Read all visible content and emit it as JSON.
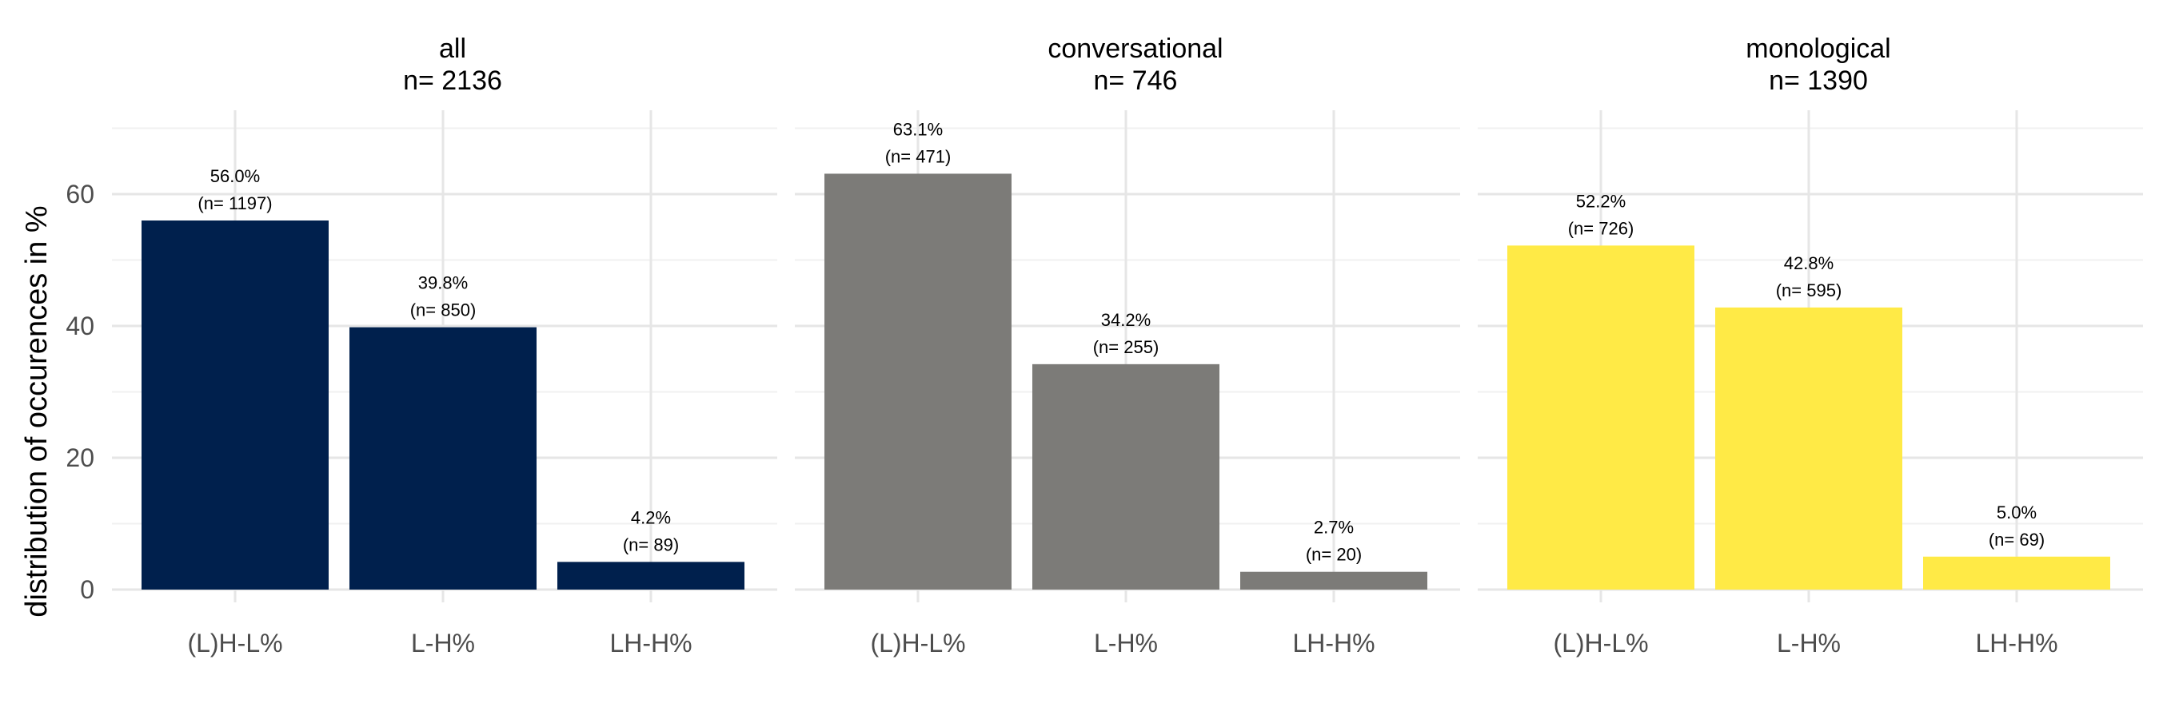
{
  "chart_data": {
    "type": "bar",
    "ylabel": "distribution of occurences in %",
    "ylim": [
      0,
      72
    ],
    "yticks": [
      0,
      20,
      40,
      60
    ],
    "grid": true,
    "categories": [
      "(L)H-L%",
      "L-H%",
      "LH-H%"
    ],
    "facets": [
      {
        "title": "all",
        "n_label": "n=  2136",
        "color": "#00204D",
        "values": [
          56.0,
          39.8,
          4.2
        ],
        "labels": [
          "56.0%",
          "39.8%",
          "4.2%"
        ],
        "counts": [
          "(n= 1197)",
          "(n= 850)",
          "(n= 89)"
        ]
      },
      {
        "title": "conversational",
        "n_label": "n=  746",
        "color": "#7C7B78",
        "values": [
          63.1,
          34.2,
          2.7
        ],
        "labels": [
          "63.1%",
          "34.2%",
          "2.7%"
        ],
        "counts": [
          "(n= 471)",
          "(n= 255)",
          "(n= 20)"
        ]
      },
      {
        "title": "monological",
        "n_label": "n=  1390",
        "color": "#FFEA46",
        "values": [
          52.2,
          42.8,
          5.0
        ],
        "labels": [
          "52.2%",
          "42.8%",
          "5.0%"
        ],
        "counts": [
          "(n= 726)",
          "(n= 595)",
          "(n= 69)"
        ]
      }
    ]
  }
}
